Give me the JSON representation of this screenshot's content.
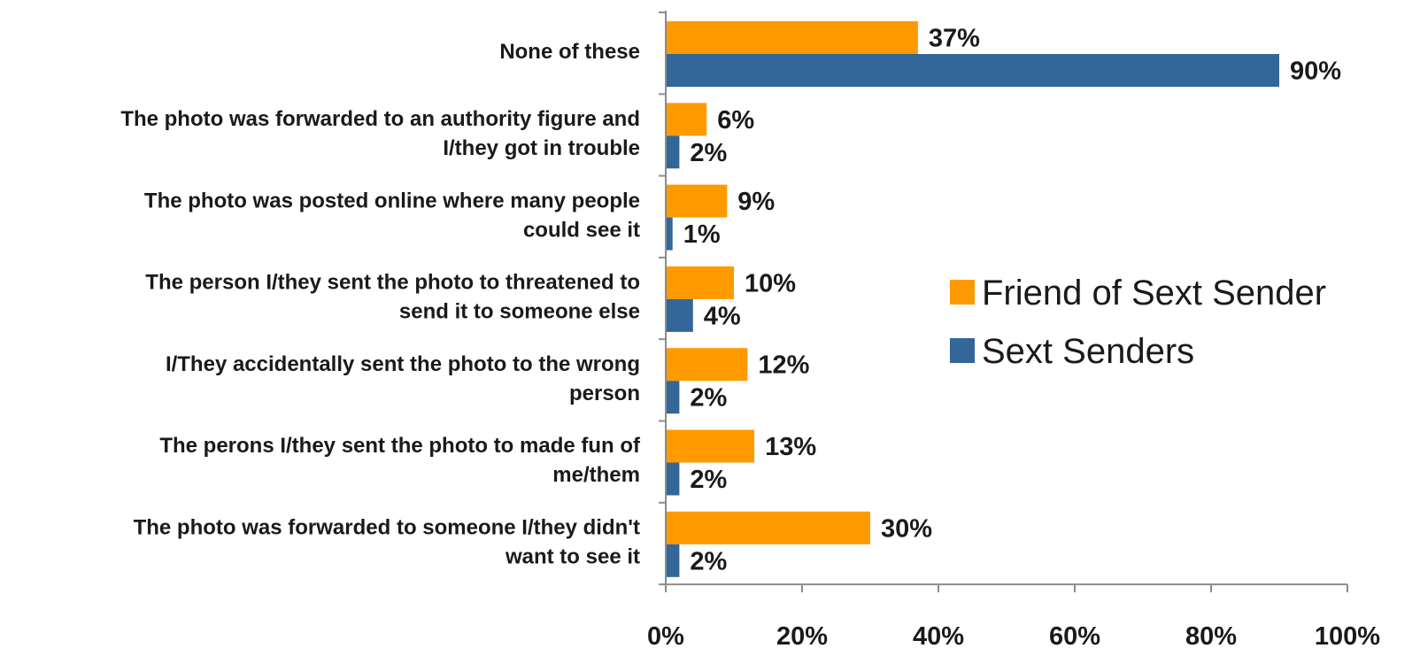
{
  "chart_data": {
    "type": "bar",
    "orientation": "horizontal",
    "categories": [
      [
        "None of these"
      ],
      [
        "The photo was forwarded to an authority figure and",
        "I/they got in trouble"
      ],
      [
        "The photo was posted online where many people",
        "could see it"
      ],
      [
        "The person I/they sent the photo to threatened to",
        "send it to someone else"
      ],
      [
        "I/They accidentally sent the photo to the wrong",
        "person"
      ],
      [
        "The perons I/they sent the photo to made fun of",
        "me/them"
      ],
      [
        "The photo was forwarded to someone I/they didn't",
        "want to see it"
      ]
    ],
    "series": [
      {
        "name": "Friend of Sext Sender",
        "color": "#FF9900",
        "values": [
          37,
          6,
          9,
          10,
          12,
          13,
          30
        ],
        "labels": [
          "37%",
          "6%",
          "9%",
          "10%",
          "12%",
          "13%",
          "30%"
        ]
      },
      {
        "name": "Sext Senders",
        "color": "#336699",
        "values": [
          90,
          2,
          1,
          4,
          2,
          2,
          2
        ],
        "labels": [
          "90%",
          "2%",
          "1%",
          "4%",
          "2%",
          "2%",
          "2%"
        ]
      }
    ],
    "xlim": [
      0,
      100
    ],
    "xticks": [
      "0%",
      "20%",
      "40%",
      "60%",
      "80%",
      "100%"
    ],
    "grid": false,
    "legend_position": "right",
    "title": "",
    "xlabel": "",
    "ylabel": ""
  }
}
